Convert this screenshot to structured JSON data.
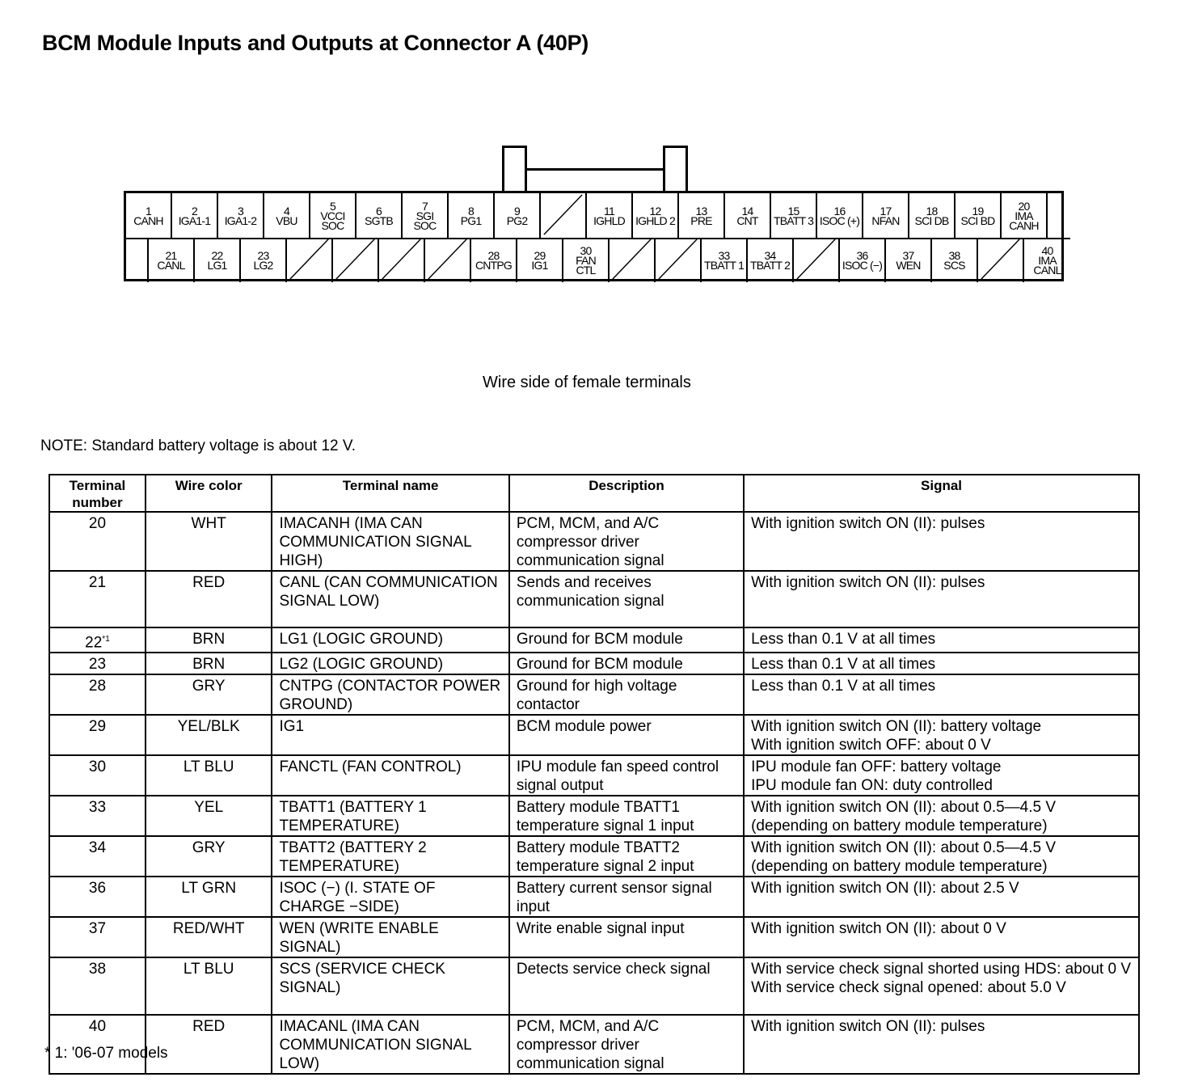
{
  "title": "BCM Module Inputs and Outputs at Connector A (40P)",
  "connector": {
    "caption": "Wire side of female terminals",
    "top_row": [
      {
        "num": "1",
        "label": "CANH"
      },
      {
        "num": "2",
        "label": "IGA1-1"
      },
      {
        "num": "3",
        "label": "IGA1-2"
      },
      {
        "num": "4",
        "label": "VBU"
      },
      {
        "num": "5",
        "label": "VCCI SOC"
      },
      {
        "num": "6",
        "label": "SGTB"
      },
      {
        "num": "7",
        "label": "SGI SOC"
      },
      {
        "num": "8",
        "label": "PG1"
      },
      {
        "num": "9",
        "label": "PG2"
      },
      {
        "empty": true
      },
      {
        "num": "11",
        "label": "IGHLD"
      },
      {
        "num": "12",
        "label": "IGHLD 2"
      },
      {
        "num": "13",
        "label": "PRE"
      },
      {
        "num": "14",
        "label": "CNT"
      },
      {
        "num": "15",
        "label": "TBATT 3"
      },
      {
        "num": "16",
        "label": "ISOC (+)"
      },
      {
        "num": "17",
        "label": "NFAN"
      },
      {
        "num": "18",
        "label": "SCI DB"
      },
      {
        "num": "19",
        "label": "SCI BD"
      },
      {
        "num": "20",
        "label": "IMA CANH"
      },
      {
        "blank": true
      }
    ],
    "bottom_row": [
      {
        "blank": true
      },
      {
        "num": "21",
        "label": "CANL"
      },
      {
        "num": "22",
        "label": "LG1"
      },
      {
        "num": "23",
        "label": "LG2"
      },
      {
        "empty": true
      },
      {
        "empty": true
      },
      {
        "empty": true
      },
      {
        "empty": true
      },
      {
        "num": "28",
        "label": "CNTPG"
      },
      {
        "num": "29",
        "label": "IG1"
      },
      {
        "num": "30",
        "label": "FAN CTL"
      },
      {
        "empty": true
      },
      {
        "empty": true
      },
      {
        "num": "33",
        "label": "TBATT 1"
      },
      {
        "num": "34",
        "label": "TBATT 2"
      },
      {
        "empty": true
      },
      {
        "num": "36",
        "label": "ISOC (−)"
      },
      {
        "num": "37",
        "label": "WEN"
      },
      {
        "num": "38",
        "label": "SCS"
      },
      {
        "empty": true
      },
      {
        "num": "40",
        "label": "IMA CANL"
      }
    ]
  },
  "note": "NOTE: Standard battery voltage is about 12 V.",
  "table": {
    "headers": [
      "Terminal number",
      "Wire color",
      "Terminal name",
      "Description",
      "Signal"
    ],
    "rows": [
      {
        "num": "20",
        "sup": "",
        "color": "WHT",
        "name": "IMACANH (IMA CAN COMMUNICATION SIGNAL HIGH)",
        "desc": "PCM, MCM, and A/C compressor driver communication signal",
        "signal": "With ignition switch ON (II): pulses"
      },
      {
        "num": "21",
        "sup": "",
        "color": "RED",
        "name": "CANL (CAN COMMUNICATION SIGNAL LOW)",
        "desc": "Sends and receives communication signal",
        "signal": "With ignition switch ON (II): pulses"
      },
      {
        "num": "22",
        "sup": "*1",
        "color": "BRN",
        "name": "LG1 (LOGIC GROUND)",
        "desc": "Ground for BCM module",
        "signal": "Less than 0.1 V at all times"
      },
      {
        "num": "23",
        "sup": "",
        "color": "BRN",
        "name": "LG2 (LOGIC GROUND)",
        "desc": "Ground for BCM module",
        "signal": "Less than 0.1 V at all times"
      },
      {
        "num": "28",
        "sup": "",
        "color": "GRY",
        "name": "CNTPG (CONTACTOR POWER GROUND)",
        "desc": "Ground for high voltage contactor",
        "signal": "Less than 0.1 V at all times"
      },
      {
        "num": "29",
        "sup": "",
        "color": "YEL/BLK",
        "name": "IG1",
        "desc": "BCM module power",
        "signal": "With ignition switch ON (II): battery voltage\nWith ignition switch OFF: about 0 V"
      },
      {
        "num": "30",
        "sup": "",
        "color": "LT BLU",
        "name": "FANCTL (FAN CONTROL)",
        "desc": "IPU module fan speed control signal output",
        "signal": "IPU module fan OFF: battery voltage\nIPU module fan ON: duty controlled"
      },
      {
        "num": "33",
        "sup": "",
        "color": "YEL",
        "name": "TBATT1 (BATTERY 1 TEMPERATURE)",
        "desc": "Battery module TBATT1 temperature signal 1 input",
        "signal": "With ignition switch ON (II): about 0.5—4.5 V\n(depending on battery module temperature)"
      },
      {
        "num": "34",
        "sup": "",
        "color": "GRY",
        "name": "TBATT2 (BATTERY 2 TEMPERATURE)",
        "desc": "Battery module TBATT2 temperature signal 2 input",
        "signal": "With ignition switch ON (II): about 0.5—4.5 V\n(depending on battery module temperature)"
      },
      {
        "num": "36",
        "sup": "",
        "color": "LT GRN",
        "name": "ISOC (−) (I. STATE OF CHARGE −SIDE)",
        "desc": "Battery current sensor signal input",
        "signal": "With ignition switch ON (II): about 2.5 V"
      },
      {
        "num": "37",
        "sup": "",
        "color": "RED/WHT",
        "name": "WEN (WRITE ENABLE SIGNAL)",
        "desc": "Write enable signal input",
        "signal": "With ignition switch ON (II): about 0 V"
      },
      {
        "num": "38",
        "sup": "",
        "color": "LT BLU",
        "name": "SCS (SERVICE CHECK SIGNAL)",
        "desc": "Detects service check signal",
        "signal": "With service check signal shorted using HDS: about 0 V\nWith service check signal opened: about 5.0 V"
      },
      {
        "num": "40",
        "sup": "",
        "color": "RED",
        "name": "IMACANL (IMA CAN COMMUNICATION SIGNAL LOW)",
        "desc": "PCM, MCM, and A/C compressor driver communication signal",
        "signal": "With ignition switch ON (II): pulses"
      }
    ]
  },
  "footnote": "* 1: '06-07 models"
}
